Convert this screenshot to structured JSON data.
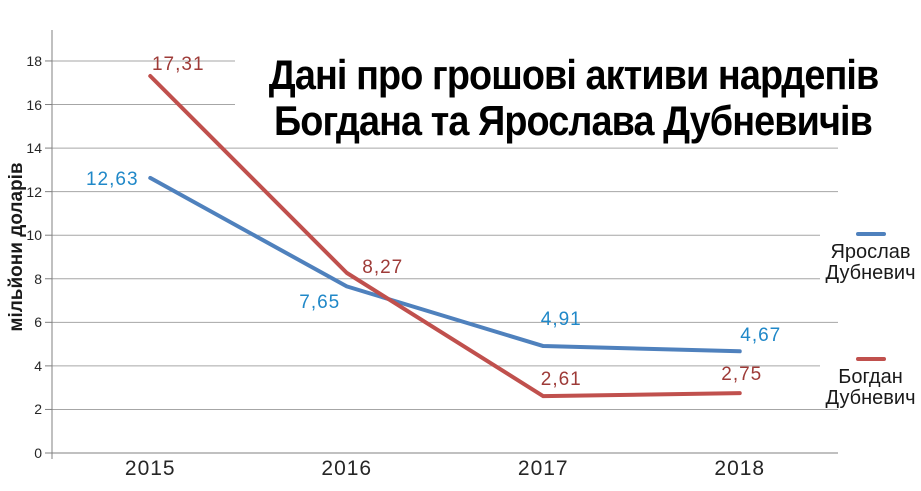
{
  "colors": {
    "background": "#FFFFFF",
    "grid": "#A6A6A6",
    "axis": "#808080",
    "tick_text": "#262626",
    "title_text": "#000000",
    "legend_text": "#1A1A1A"
  },
  "title": {
    "line1": "Дані про грошові активи нардепів",
    "line2": "Богдана та Ярослава Дубневичів"
  },
  "y_axis": {
    "title": "мільйони доларів",
    "ticks": [
      "0",
      "2",
      "4",
      "6",
      "8",
      "10",
      "12",
      "14",
      "16",
      "18"
    ]
  },
  "x_axis": {
    "categories": [
      "2015",
      "2016",
      "2017",
      "2018"
    ]
  },
  "legend": {
    "items": [
      {
        "name": "Ярослав Дубневич",
        "color": "#4F81BD"
      },
      {
        "name": "Богдан Дубневич",
        "color": "#C0504D"
      }
    ]
  },
  "chart_data": {
    "type": "line",
    "title": "Дані про грошові активи нардепів Богдана та Ярослава Дубневичів",
    "ylabel": "мільйони доларів",
    "xlabel": "",
    "categories": [
      "2015",
      "2016",
      "2017",
      "2018"
    ],
    "series": [
      {
        "name": "Ярослав Дубневич",
        "color": "#4F81BD",
        "label_color": "#2088C8",
        "values": [
          12.63,
          7.65,
          4.91,
          4.67
        ],
        "labels": [
          "12,63",
          "7,65",
          "4,91",
          "4,67"
        ]
      },
      {
        "name": "Богдан Дубневич",
        "color": "#C0504D",
        "label_color": "#9E3B38",
        "values": [
          17.31,
          8.27,
          2.61,
          2.75
        ],
        "labels": [
          "17,31",
          "8,27",
          "2,61",
          "2,75"
        ]
      }
    ],
    "ylim": [
      0,
      18
    ],
    "ytick_step": 2,
    "grid": true,
    "legend_position": "right"
  }
}
